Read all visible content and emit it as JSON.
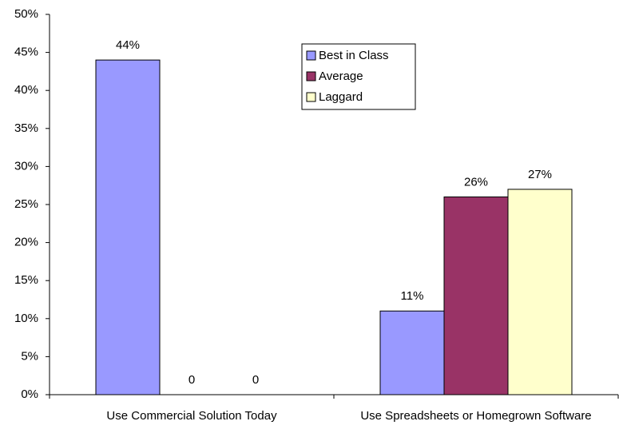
{
  "chart_data": {
    "type": "bar",
    "categories": [
      "Use Commercial Solution Today",
      "Use Spreadsheets or Homegrown Software"
    ],
    "series": [
      {
        "name": "Best in Class",
        "color": "#9999ff",
        "values": [
          44,
          11
        ],
        "value_labels": [
          "44%",
          "11%"
        ]
      },
      {
        "name": "Average",
        "color": "#993366",
        "values": [
          0,
          26
        ],
        "value_labels": [
          "0",
          "26%"
        ]
      },
      {
        "name": "Laggard",
        "color": "#ffffcc",
        "values": [
          0,
          27
        ],
        "value_labels": [
          "0",
          "27%"
        ]
      }
    ],
    "ylim": [
      0,
      50
    ],
    "yticks": [
      {
        "value": 0,
        "label": "0%"
      },
      {
        "value": 5,
        "label": "5%"
      },
      {
        "value": 10,
        "label": "10%"
      },
      {
        "value": 15,
        "label": "15%"
      },
      {
        "value": 20,
        "label": "20%"
      },
      {
        "value": 25,
        "label": "25%"
      },
      {
        "value": 30,
        "label": "30%"
      },
      {
        "value": 35,
        "label": "35%"
      },
      {
        "value": 40,
        "label": "40%"
      },
      {
        "value": 45,
        "label": "45%"
      },
      {
        "value": 50,
        "label": "50%"
      }
    ],
    "grid": false,
    "legend": "top-center"
  }
}
